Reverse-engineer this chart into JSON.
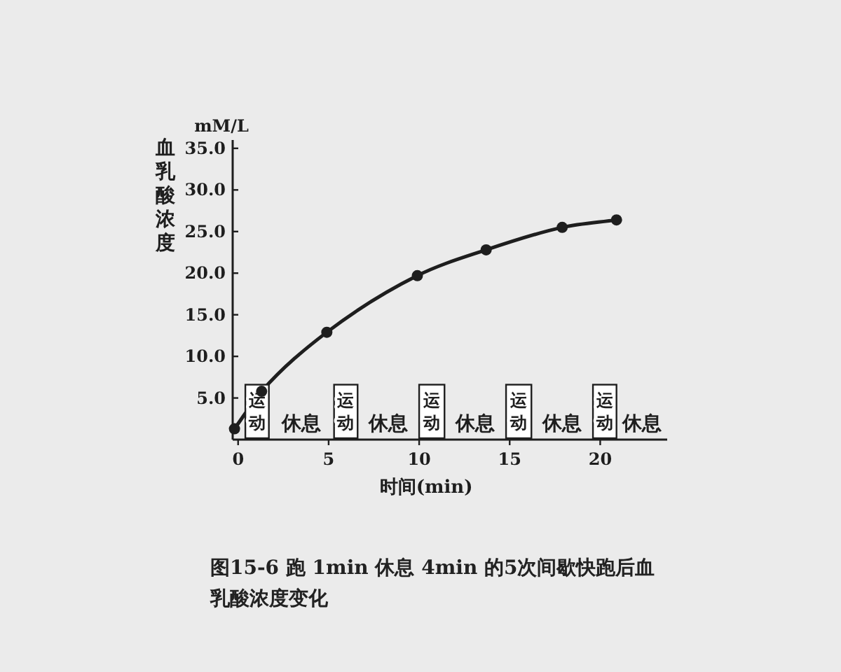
{
  "chart_data": {
    "type": "line",
    "title": "图15-6  跑 1min 休息 4min 的5次间歇快跑后血乳酸浓度变化",
    "xlabel": "时间(min)",
    "ylabel": "血乳酸浓度",
    "annotations": [
      "mM/L",
      "休息",
      "休息",
      "休息",
      "休息",
      "休息"
    ],
    "x": [
      -0.2,
      1.3,
      4.9,
      9.9,
      13.7,
      17.9,
      20.9
    ],
    "series": [
      {
        "color": "#1e1e1e",
        "values": [
          1.3,
          5.8,
          12.9,
          19.7,
          22.8,
          25.5,
          26.4
        ]
      }
    ],
    "marker": "circle",
    "line_style": "solid",
    "xlim": [
      -0.3,
      23.7
    ],
    "ylim": [
      0,
      36
    ],
    "xticks": [
      0,
      5,
      10,
      15,
      20
    ],
    "yticks": [
      {
        "value": 5,
        "label": "5.0"
      },
      {
        "value": 10,
        "label": "10.0"
      },
      {
        "value": 15,
        "label": "15.0"
      },
      {
        "value": 20,
        "label": "20.0"
      },
      {
        "value": 25,
        "label": "25.0"
      },
      {
        "value": 30,
        "label": "30.0"
      },
      {
        "value": 35,
        "label": "35.0"
      }
    ],
    "bands": [
      {
        "axis": "x",
        "from": 0.4,
        "to": 1.7,
        "label": "运动",
        "color": "#ffffff"
      },
      {
        "axis": "x",
        "from": 5.3,
        "to": 6.6,
        "label": "运动",
        "color": "#ffffff"
      },
      {
        "axis": "x",
        "from": 10.0,
        "to": 11.4,
        "label": "运动",
        "color": "#ffffff"
      },
      {
        "axis": "x",
        "from": 14.8,
        "to": 16.2,
        "label": "运动",
        "color": "#ffffff"
      },
      {
        "axis": "x",
        "from": 19.6,
        "to": 20.9,
        "label": "运动",
        "color": "#ffffff"
      }
    ]
  }
}
